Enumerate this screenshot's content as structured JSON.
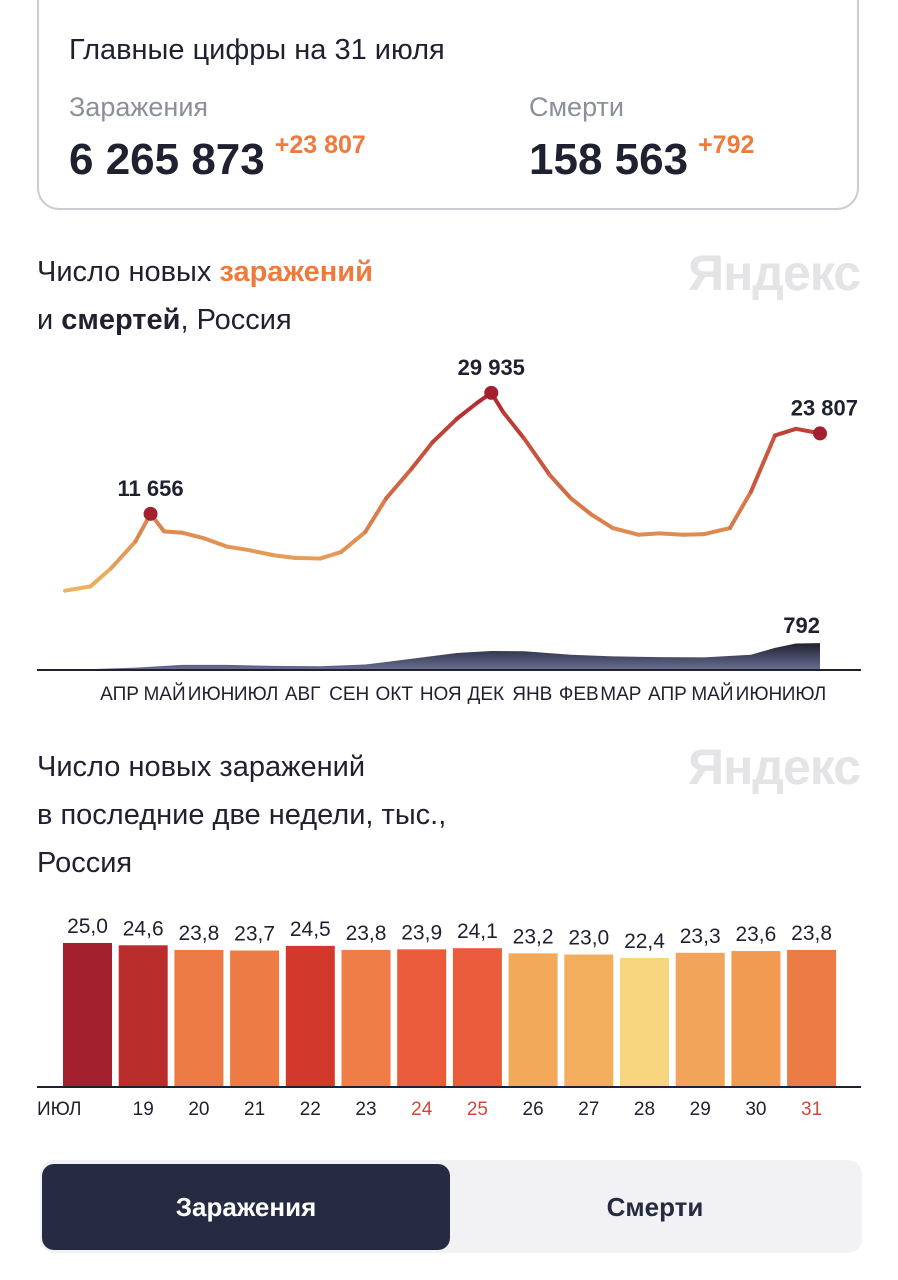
{
  "summary": {
    "title": "Главные цифры на 31 июля",
    "infections": {
      "label": "Заражения",
      "value": "6 265 873",
      "delta": "+23 807"
    },
    "deaths": {
      "label": "Смерти",
      "value": "158 563",
      "delta": "+792"
    }
  },
  "logo": "Яндекс",
  "chart1_title": {
    "part1": "Число новых ",
    "part2": "заражений",
    "part3": "и ",
    "part4": "смертей",
    ",": ", Россия",
    "part5": ", Россия"
  },
  "chart2_title": {
    "line1": "Число новых заражений",
    "line2": "в последние две недели, тыс.,",
    "line3": "Россия"
  },
  "colors": {
    "accent": "#ee7a3c",
    "deaths_area": "#3a3f63",
    "low": "#f0b560",
    "high": "#b3252d"
  },
  "chart_data": [
    {
      "type": "line",
      "name": "infections-deaths",
      "months": [
        "АПР",
        "МАЙ",
        "ИЮН",
        "ИЮЛ",
        "АВГ",
        "СЕН",
        "ОКТ",
        "НОЯ",
        "ДЕК",
        "ЯНВ",
        "ФЕВ",
        "МАР",
        "АПР",
        "МАЙ",
        "ИЮН",
        "ИЮЛ"
      ],
      "infections": [
        [
          "2020-03-15",
          50
        ],
        [
          "2020-04-01",
          700
        ],
        [
          "2020-04-15",
          3500
        ],
        [
          "2020-05-01",
          7500
        ],
        [
          "2020-05-11",
          11656
        ],
        [
          "2020-05-20",
          9000
        ],
        [
          "2020-06-01",
          8800
        ],
        [
          "2020-06-15",
          8000
        ],
        [
          "2020-07-01",
          6700
        ],
        [
          "2020-07-15",
          6200
        ],
        [
          "2020-08-01",
          5400
        ],
        [
          "2020-08-15",
          5000
        ],
        [
          "2020-09-01",
          4900
        ],
        [
          "2020-09-15",
          5900
        ],
        [
          "2020-10-01",
          8900
        ],
        [
          "2020-10-15",
          14000
        ],
        [
          "2020-11-01",
          18500
        ],
        [
          "2020-11-15",
          22500
        ],
        [
          "2020-12-01",
          26000
        ],
        [
          "2020-12-15",
          28500
        ],
        [
          "2020-12-24",
          29935
        ],
        [
          "2021-01-01",
          27000
        ],
        [
          "2021-01-15",
          23000
        ],
        [
          "2021-02-01",
          17500
        ],
        [
          "2021-02-15",
          14000
        ],
        [
          "2021-03-01",
          11500
        ],
        [
          "2021-03-15",
          9500
        ],
        [
          "2021-04-01",
          8500
        ],
        [
          "2021-04-15",
          8700
        ],
        [
          "2021-05-01",
          8500
        ],
        [
          "2021-05-15",
          8600
        ],
        [
          "2021-06-01",
          9500
        ],
        [
          "2021-06-15",
          15000
        ],
        [
          "2021-07-01",
          23500
        ],
        [
          "2021-07-15",
          24500
        ],
        [
          "2021-07-31",
          23807
        ]
      ],
      "deaths": [
        [
          "2020-03-15",
          0
        ],
        [
          "2020-05-01",
          70
        ],
        [
          "2020-06-01",
          150
        ],
        [
          "2020-07-01",
          150
        ],
        [
          "2020-08-01",
          120
        ],
        [
          "2020-09-01",
          110
        ],
        [
          "2020-10-01",
          160
        ],
        [
          "2020-11-01",
          330
        ],
        [
          "2020-12-01",
          500
        ],
        [
          "2020-12-24",
          560
        ],
        [
          "2021-01-15",
          550
        ],
        [
          "2021-02-15",
          450
        ],
        [
          "2021-03-15",
          400
        ],
        [
          "2021-04-15",
          380
        ],
        [
          "2021-05-15",
          370
        ],
        [
          "2021-06-15",
          450
        ],
        [
          "2021-07-01",
          650
        ],
        [
          "2021-07-15",
          780
        ],
        [
          "2021-07-31",
          792
        ]
      ],
      "annotations": [
        {
          "date": "2020-05-11",
          "value": 11656,
          "label": "11 656"
        },
        {
          "date": "2020-12-24",
          "value": 29935,
          "label": "29 935"
        },
        {
          "date": "2021-07-31",
          "value": 23807,
          "label": "23 807"
        },
        {
          "date": "2021-07-31",
          "value": 792,
          "label": "792",
          "series": "deaths"
        }
      ]
    },
    {
      "type": "bar",
      "name": "two-weeks",
      "categories": [
        "ИЮЛ",
        "19",
        "20",
        "21",
        "22",
        "23",
        "24",
        "25",
        "26",
        "27",
        "28",
        "29",
        "30",
        "31"
      ],
      "category_colors": [
        "#1f2130",
        "#1f2130",
        "#1f2130",
        "#1f2130",
        "#1f2130",
        "#1f2130",
        "#d0473a",
        "#d0473a",
        "#1f2130",
        "#1f2130",
        "#1f2130",
        "#1f2130",
        "#1f2130",
        "#d0473a"
      ],
      "values": [
        25.0,
        24.6,
        23.8,
        23.7,
        24.5,
        23.8,
        23.9,
        24.1,
        23.2,
        23.0,
        22.4,
        23.3,
        23.6,
        23.8
      ],
      "labels": [
        "25,0",
        "24,6",
        "23,8",
        "23,7",
        "24,5",
        "23,8",
        "23,9",
        "24,1",
        "23,2",
        "23,0",
        "22,4",
        "23,3",
        "23,6",
        "23,8"
      ],
      "bar_colors": [
        "#a3202e",
        "#b92d2d",
        "#ed7b45",
        "#ed7b45",
        "#d2382c",
        "#ef7d47",
        "#e95b3a",
        "#e95b3a",
        "#f2a95a",
        "#f2ae5d",
        "#f7d67f",
        "#f2a55a",
        "#f09a52",
        "#ed7b45"
      ],
      "ylim": [
        0,
        25
      ]
    }
  ],
  "tabs": [
    {
      "label": "Заражения",
      "active": true
    },
    {
      "label": "Смерти",
      "active": false
    }
  ]
}
